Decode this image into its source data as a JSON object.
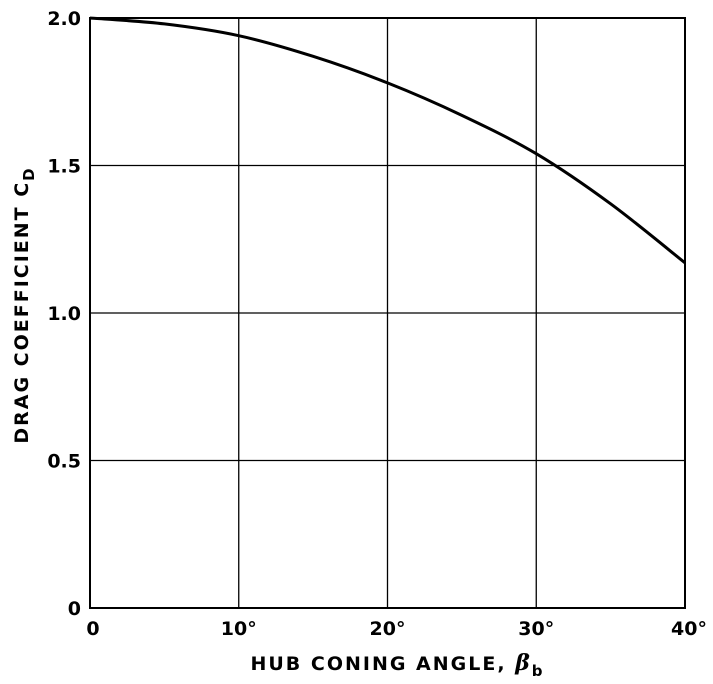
{
  "chart_data": {
    "type": "line",
    "title": "",
    "xlabel": "HUB CONING ANGLE, ",
    "xlabel_symbol": "β",
    "xlabel_subscript": "b",
    "ylabel": "DRAG COEFFICIENT C",
    "ylabel_subscript": "D",
    "xlim": [
      0,
      40
    ],
    "ylim": [
      0,
      2.0
    ],
    "grid": true,
    "x_tick_values": [
      0,
      10,
      20,
      30,
      40
    ],
    "x_tick_labels": [
      "0",
      "10°",
      "20°",
      "30°",
      "40°"
    ],
    "y_tick_values": [
      0,
      0.5,
      1.0,
      1.5,
      2.0
    ],
    "y_tick_labels": [
      "0",
      "0.5",
      "1.0",
      "1.5",
      "2.0"
    ],
    "series": [
      {
        "x": [
          0,
          5,
          10,
          15,
          20,
          25,
          30,
          35,
          40
        ],
        "y": [
          2.0,
          1.98,
          1.94,
          1.87,
          1.78,
          1.67,
          1.54,
          1.37,
          1.17
        ]
      }
    ],
    "line_color": "#000000",
    "grid_color": "#000000"
  }
}
